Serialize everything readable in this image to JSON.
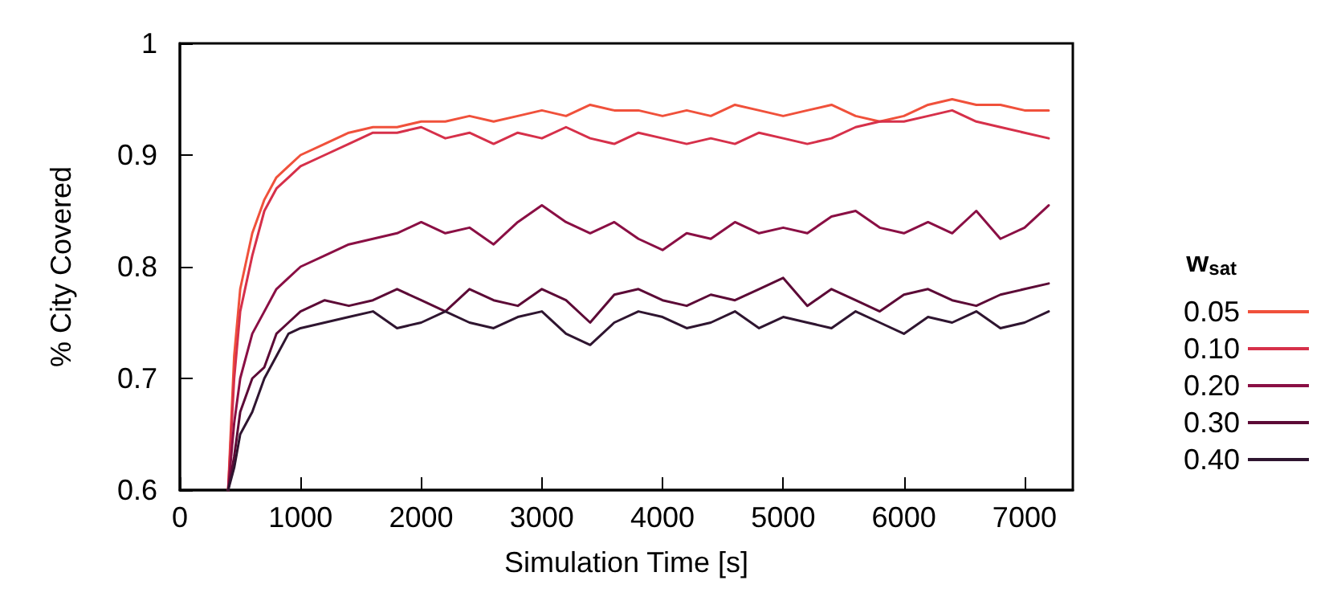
{
  "chart_data": {
    "type": "line",
    "xlabel": "Simulation Time [s]",
    "ylabel": "% City Covered",
    "legend_title": "w$_{sat}$",
    "legend": "right",
    "grid": false,
    "marker": "none",
    "line_style": "solid",
    "xlim": [
      0,
      7400
    ],
    "xticks": [
      0,
      1000,
      2000,
      3000,
      4000,
      5000,
      6000,
      7000
    ],
    "ylim": [
      0.6,
      1
    ],
    "yticks": [
      0.6,
      0.7,
      0.8,
      0.9,
      1
    ],
    "x": [
      400,
      450,
      500,
      600,
      700,
      800,
      900,
      1000,
      1200,
      1400,
      1600,
      1800,
      2000,
      2200,
      2400,
      2600,
      2800,
      3000,
      3200,
      3400,
      3600,
      3800,
      4000,
      4200,
      4400,
      4600,
      4800,
      5000,
      5200,
      5400,
      5600,
      5800,
      6000,
      6200,
      6400,
      6600,
      6800,
      7000,
      7200
    ],
    "series": [
      {
        "name": "0.05",
        "color": "#f0513b",
        "values": [
          0.6,
          0.72,
          0.78,
          0.83,
          0.86,
          0.88,
          0.89,
          0.9,
          0.91,
          0.92,
          0.925,
          0.925,
          0.93,
          0.93,
          0.935,
          0.93,
          0.935,
          0.94,
          0.935,
          0.945,
          0.94,
          0.94,
          0.935,
          0.94,
          0.935,
          0.945,
          0.94,
          0.935,
          0.94,
          0.945,
          0.935,
          0.93,
          0.935,
          0.945,
          0.95,
          0.945,
          0.945,
          0.94,
          0.94
        ]
      },
      {
        "name": "0.10",
        "color": "#d6304a",
        "values": [
          0.6,
          0.7,
          0.76,
          0.81,
          0.85,
          0.87,
          0.88,
          0.89,
          0.9,
          0.91,
          0.92,
          0.92,
          0.925,
          0.915,
          0.92,
          0.91,
          0.92,
          0.915,
          0.925,
          0.915,
          0.91,
          0.92,
          0.915,
          0.91,
          0.915,
          0.91,
          0.92,
          0.915,
          0.91,
          0.915,
          0.925,
          0.93,
          0.93,
          0.935,
          0.94,
          0.93,
          0.925,
          0.92,
          0.915
        ]
      },
      {
        "name": "0.20",
        "color": "#8a0f44",
        "values": [
          0.6,
          0.66,
          0.7,
          0.74,
          0.76,
          0.78,
          0.79,
          0.8,
          0.81,
          0.82,
          0.825,
          0.83,
          0.84,
          0.83,
          0.835,
          0.82,
          0.84,
          0.855,
          0.84,
          0.83,
          0.84,
          0.825,
          0.815,
          0.83,
          0.825,
          0.84,
          0.83,
          0.835,
          0.83,
          0.845,
          0.85,
          0.835,
          0.83,
          0.84,
          0.83,
          0.85,
          0.825,
          0.835,
          0.855
        ]
      },
      {
        "name": "0.30",
        "color": "#5c0a36",
        "values": [
          0.6,
          0.63,
          0.67,
          0.7,
          0.71,
          0.74,
          0.75,
          0.76,
          0.77,
          0.765,
          0.77,
          0.78,
          0.77,
          0.76,
          0.78,
          0.77,
          0.765,
          0.78,
          0.77,
          0.75,
          0.775,
          0.78,
          0.77,
          0.765,
          0.775,
          0.77,
          0.78,
          0.79,
          0.765,
          0.78,
          0.77,
          0.76,
          0.775,
          0.78,
          0.77,
          0.765,
          0.775,
          0.78,
          0.785
        ]
      },
      {
        "name": "0.40",
        "color": "#2f1530",
        "values": [
          0.6,
          0.62,
          0.65,
          0.67,
          0.7,
          0.72,
          0.74,
          0.745,
          0.75,
          0.755,
          0.76,
          0.745,
          0.75,
          0.76,
          0.75,
          0.745,
          0.755,
          0.76,
          0.74,
          0.73,
          0.75,
          0.76,
          0.755,
          0.745,
          0.75,
          0.76,
          0.745,
          0.755,
          0.75,
          0.745,
          0.76,
          0.75,
          0.74,
          0.755,
          0.75,
          0.76,
          0.745,
          0.75,
          0.76
        ]
      }
    ]
  }
}
